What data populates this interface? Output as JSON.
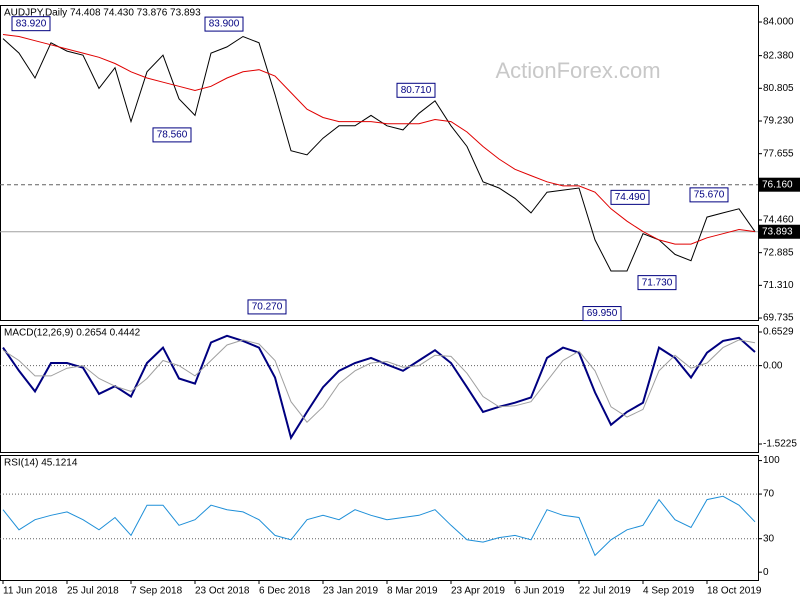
{
  "chart_data": [
    {
      "type": "line",
      "title": "AUDJPY,Daily  74.408 74.430 73.876 73.893",
      "watermark": "ActionForex.com",
      "categories": [
        "11 Jun 2018",
        null,
        null,
        null,
        "25 Jul 2018",
        null,
        null,
        null,
        "7 Sep 2018",
        null,
        null,
        null,
        "23 Oct 2018",
        null,
        null,
        null,
        "6 Dec 2018",
        null,
        null,
        null,
        "23 Jan 2019",
        null,
        null,
        null,
        "8 Mar 2019",
        null,
        null,
        null,
        "23 Apr 2019",
        null,
        null,
        null,
        "6 Jun 2019",
        null,
        null,
        null,
        "22 Jul 2019",
        null,
        null,
        null,
        "4 Sep 2019",
        null,
        null,
        null,
        "18 Oct 2019",
        null,
        null,
        null
      ],
      "series": [
        {
          "color": "#000000",
          "values": [
            83.2,
            82.5,
            81.3,
            83.0,
            82.6,
            82.4,
            80.8,
            81.8,
            79.2,
            81.6,
            82.4,
            80.3,
            79.5,
            82.5,
            82.8,
            83.3,
            83.0,
            80.5,
            77.8,
            77.6,
            78.4,
            79.0,
            79.0,
            79.5,
            79.0,
            78.8,
            79.6,
            80.2,
            79.0,
            78.0,
            76.3,
            76.0,
            75.5,
            74.8,
            75.8,
            75.9,
            76.0,
            73.5,
            72.0,
            72.0,
            73.8,
            73.5,
            72.8,
            72.5,
            74.6,
            74.8,
            75.0,
            73.893
          ]
        },
        {
          "color": "#e00000",
          "values": [
            83.4,
            83.3,
            83.1,
            82.9,
            82.7,
            82.5,
            82.3,
            82.0,
            81.6,
            81.3,
            81.1,
            80.9,
            80.7,
            80.9,
            81.3,
            81.6,
            81.7,
            81.4,
            80.6,
            79.8,
            79.4,
            79.2,
            79.2,
            79.2,
            79.1,
            79.1,
            79.1,
            79.3,
            79.2,
            78.7,
            78.0,
            77.4,
            76.9,
            76.6,
            76.3,
            76.1,
            76.1,
            75.8,
            75.0,
            74.4,
            73.9,
            73.5,
            73.3,
            73.3,
            73.6,
            73.8,
            74.0,
            73.9
          ]
        }
      ],
      "ylim": [
        69.64,
        84.82
      ],
      "yticks": [
        {
          "value": 84.0,
          "label": "84.000"
        },
        {
          "value": 82.38,
          "label": "82.380"
        },
        {
          "value": 80.805,
          "label": "80.805"
        },
        {
          "value": 79.23,
          "label": "79.230"
        },
        {
          "value": 77.655,
          "label": "77.655"
        },
        {
          "value": 74.46,
          "label": "74.460"
        },
        {
          "value": 72.885,
          "label": "72.885"
        },
        {
          "value": 71.31,
          "label": "71.310"
        },
        {
          "value": 69.735,
          "label": "69.735"
        }
      ],
      "levels": [
        {
          "value": 76.16,
          "label": "76.160"
        },
        {
          "value": 73.893,
          "label": "73.893"
        }
      ],
      "annotations": [
        {
          "value": 83.92,
          "label": "83.920"
        },
        {
          "value": 83.9,
          "label": "83.900"
        },
        {
          "value": 78.56,
          "label": "78.560"
        },
        {
          "value": 70.27,
          "label": "70.270"
        },
        {
          "value": 80.71,
          "label": "80.710"
        },
        {
          "value": 74.49,
          "label": "74.490"
        },
        {
          "value": 71.73,
          "label": "71.730"
        },
        {
          "value": 69.95,
          "label": "69.950"
        },
        {
          "value": 75.67,
          "label": "75.670"
        }
      ]
    },
    {
      "type": "line",
      "title": "MACD(12,26,9) 0.2654 0.4442",
      "series": [
        {
          "color": "#000080",
          "values": [
            0.35,
            -0.1,
            -0.5,
            0.05,
            0.05,
            -0.04,
            -0.55,
            -0.4,
            -0.6,
            0.05,
            0.35,
            -0.25,
            -0.35,
            0.45,
            0.58,
            0.48,
            0.35,
            -0.23,
            -1.4,
            -0.9,
            -0.42,
            -0.1,
            0.05,
            0.15,
            0.02,
            -0.1,
            0.1,
            0.3,
            0.05,
            -0.42,
            -0.9,
            -0.8,
            -0.72,
            -0.62,
            0.15,
            0.35,
            0.25,
            -0.52,
            -1.15,
            -0.9,
            -0.72,
            0.35,
            0.15,
            -0.23,
            0.25,
            0.48,
            0.54,
            0.2654
          ]
        },
        {
          "color": "#a0a0a0",
          "values": [
            0.3,
            0.1,
            -0.2,
            -0.2,
            -0.05,
            0.0,
            -0.25,
            -0.4,
            -0.5,
            -0.25,
            0.1,
            0.0,
            -0.2,
            0.1,
            0.4,
            0.5,
            0.42,
            0.1,
            -0.7,
            -1.1,
            -0.8,
            -0.35,
            -0.1,
            0.05,
            0.08,
            -0.03,
            0.0,
            0.2,
            0.18,
            -0.15,
            -0.6,
            -0.8,
            -0.78,
            -0.7,
            -0.3,
            0.1,
            0.28,
            -0.1,
            -0.8,
            -1.0,
            -0.85,
            -0.1,
            0.2,
            -0.05,
            0.05,
            0.35,
            0.5,
            0.4442
          ]
        }
      ],
      "ylim": [
        -1.678,
        0.789
      ],
      "yticks": [
        0.6529,
        {
          "value": 0,
          "label": "0.00"
        },
        -1.5225
      ],
      "levels": [
        0
      ]
    },
    {
      "type": "line",
      "title": "RSI(14) 45.1214",
      "series": [
        {
          "color": "#1e8fd8",
          "values": [
            56,
            38,
            47,
            51,
            54,
            47,
            38,
            49,
            33,
            60,
            60,
            42,
            47,
            60,
            56,
            54,
            47,
            33,
            29,
            47,
            51,
            47,
            56,
            51,
            47,
            49,
            51,
            56,
            42,
            29,
            27,
            31,
            33,
            29,
            56,
            51,
            49,
            15,
            29,
            38,
            42,
            65,
            47,
            40,
            65,
            68,
            60,
            45.1214
          ]
        }
      ],
      "ylim": [
        -7,
        105
      ],
      "yticks": [
        100,
        70,
        30,
        0
      ],
      "levels": [
        70,
        30
      ]
    }
  ]
}
